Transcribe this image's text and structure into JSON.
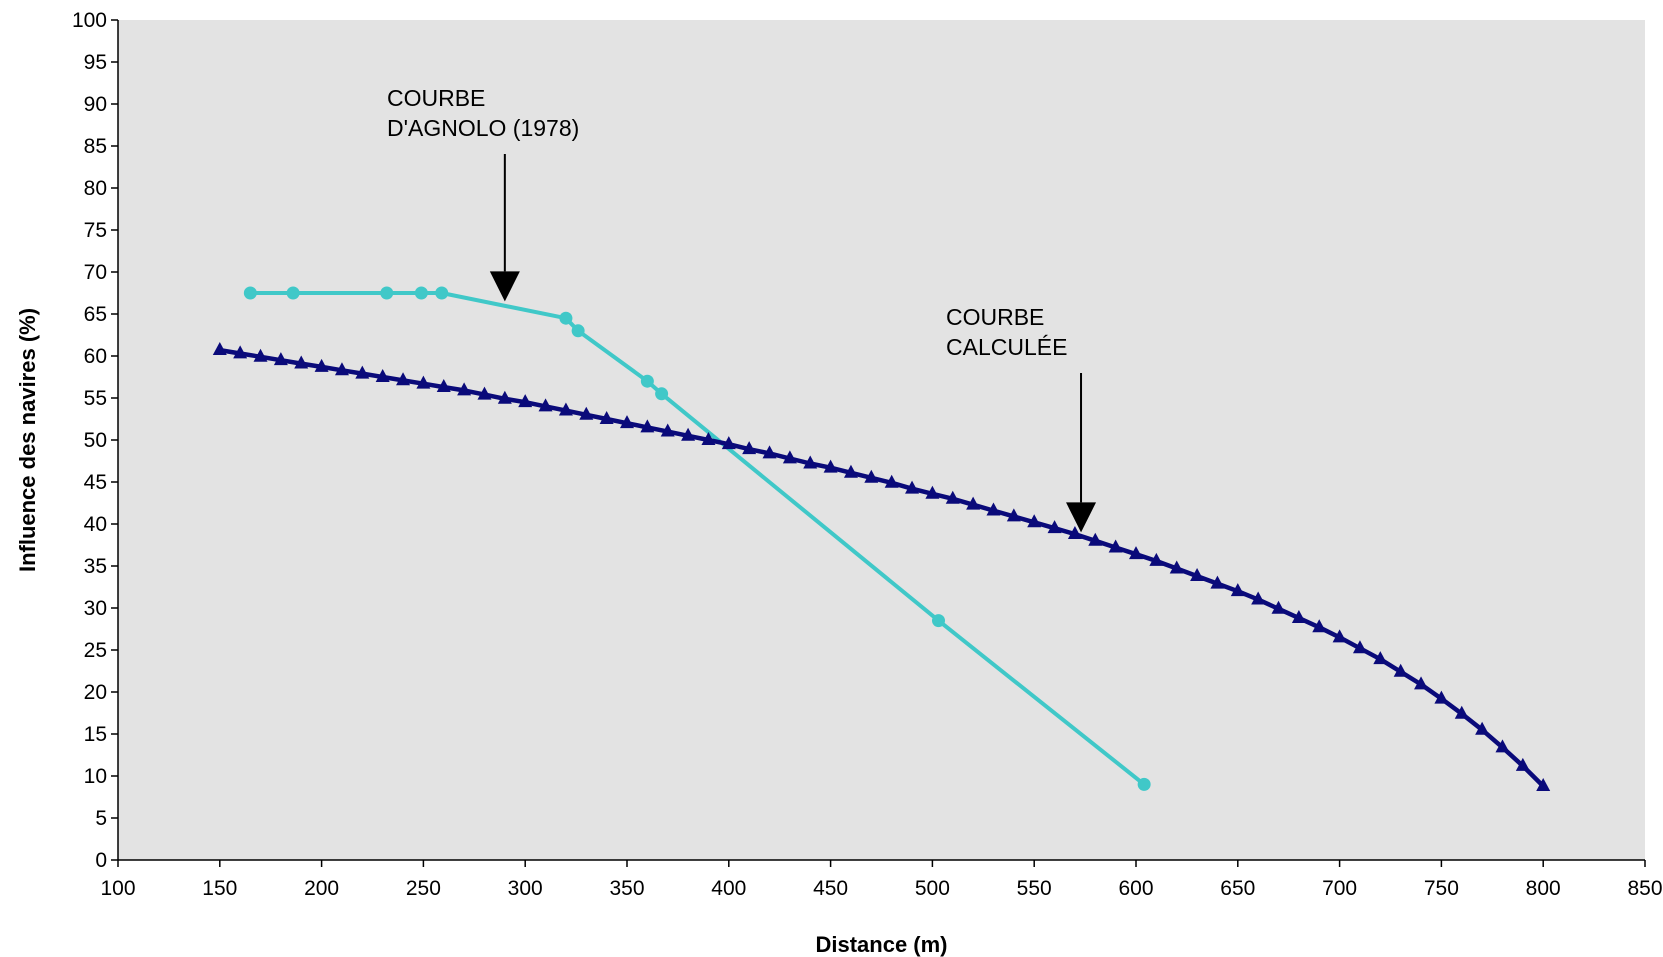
{
  "chart_data": {
    "type": "line",
    "title": "",
    "xlabel": "Distance (m)",
    "ylabel": "Influence des navires (%)",
    "xlim": [
      100,
      850
    ],
    "ylim": [
      0,
      100
    ],
    "xticks": [
      100,
      150,
      200,
      250,
      300,
      350,
      400,
      450,
      500,
      550,
      600,
      650,
      700,
      750,
      800,
      850
    ],
    "yticks": [
      0,
      5,
      10,
      15,
      20,
      25,
      30,
      35,
      40,
      45,
      50,
      55,
      60,
      65,
      70,
      75,
      80,
      85,
      90,
      95,
      100
    ],
    "grid": false,
    "legend": "none",
    "colors": {
      "plot_bg": "#e3e3e3",
      "agnolo": "#40c8c8",
      "calculee": "#0a0a7a"
    },
    "series": [
      {
        "marker": "circle",
        "x": [
          165,
          186,
          232,
          249,
          259,
          320,
          326,
          360,
          367,
          503,
          604
        ],
        "y": [
          67.5,
          67.5,
          67.5,
          67.5,
          67.5,
          64.5,
          63.0,
          57.0,
          55.5,
          28.5,
          9.0
        ]
      },
      {
        "marker": "triangle",
        "x": [
          150,
          160,
          170,
          180,
          190,
          200,
          210,
          220,
          230,
          240,
          250,
          260,
          270,
          280,
          290,
          300,
          310,
          320,
          330,
          340,
          350,
          360,
          370,
          380,
          390,
          400,
          410,
          420,
          430,
          440,
          450,
          460,
          470,
          480,
          490,
          500,
          510,
          520,
          530,
          540,
          550,
          560,
          570,
          580,
          590,
          600,
          610,
          620,
          630,
          640,
          650,
          660,
          670,
          680,
          690,
          700,
          710,
          720,
          730,
          740,
          750,
          760,
          770,
          780,
          790,
          800
        ],
        "y": [
          60.7,
          60.3,
          59.9,
          59.5,
          59.1,
          58.7,
          58.3,
          57.9,
          57.5,
          57.1,
          56.7,
          56.3,
          55.9,
          55.4,
          54.9,
          54.5,
          54.0,
          53.5,
          53.0,
          52.5,
          52.0,
          51.5,
          51.0,
          50.5,
          50.0,
          49.5,
          48.9,
          48.4,
          47.8,
          47.2,
          46.7,
          46.1,
          45.5,
          44.9,
          44.2,
          43.6,
          43.0,
          42.3,
          41.6,
          40.9,
          40.2,
          39.5,
          38.8,
          38.0,
          37.2,
          36.4,
          35.6,
          34.7,
          33.8,
          32.9,
          32.0,
          31.0,
          29.9,
          28.8,
          27.7,
          26.5,
          25.2,
          23.9,
          22.4,
          20.9,
          19.2,
          17.4,
          15.5,
          13.4,
          11.2,
          8.8
        ]
      }
    ],
    "annotations": [
      {
        "lines": [
          "COURBE",
          "D'AGNOLO (1978)"
        ],
        "arrow_to": [
          290,
          66.5
        ]
      },
      {
        "lines": [
          "COURBE",
          "CALCULÉE"
        ],
        "arrow_to": [
          573,
          39.0
        ]
      }
    ]
  }
}
